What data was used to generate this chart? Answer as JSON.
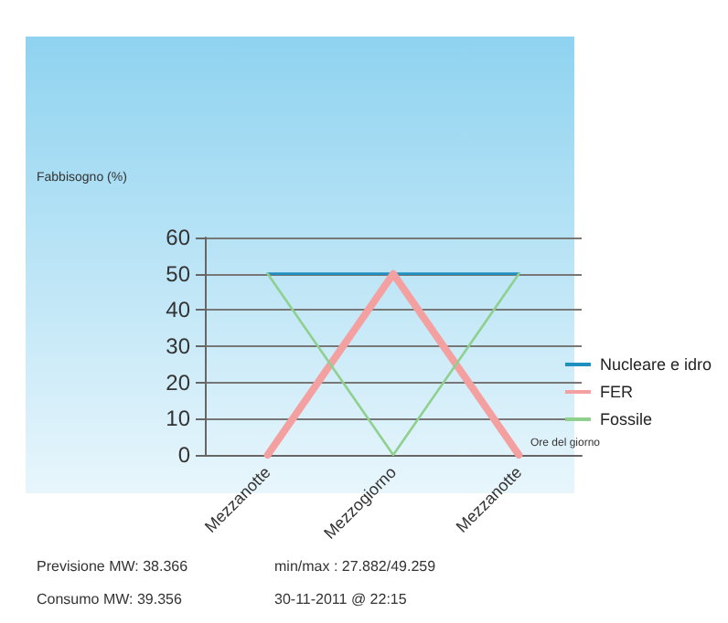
{
  "chart_data": {
    "type": "line",
    "categories": [
      "Mezzanotte",
      "Mezzogiorno",
      "Mezzanotte"
    ],
    "series": [
      {
        "name": "Nucleare e idro",
        "color": "#1f8fc0",
        "values": [
          50,
          50,
          50
        ]
      },
      {
        "name": "FER",
        "color": "#f4a0a0",
        "values": [
          0,
          50,
          0
        ]
      },
      {
        "name": "Fossile",
        "color": "#8fd08f",
        "values": [
          50,
          0,
          50
        ]
      }
    ],
    "xlabel": "Ore del giorno",
    "ylim": [
      0,
      60
    ],
    "yticks": [
      0,
      10,
      20,
      30,
      40,
      50,
      60
    ],
    "grid": "y",
    "legend": "right",
    "marker": "none",
    "line_style": "solid",
    "annotations": [
      "Fabbisogno (%)",
      "Previsione MW: 38.366",
      "Consumo MW: 39.356",
      "min/max : 27.882/49.259",
      "30-11-2011 @ 22:15"
    ]
  }
}
